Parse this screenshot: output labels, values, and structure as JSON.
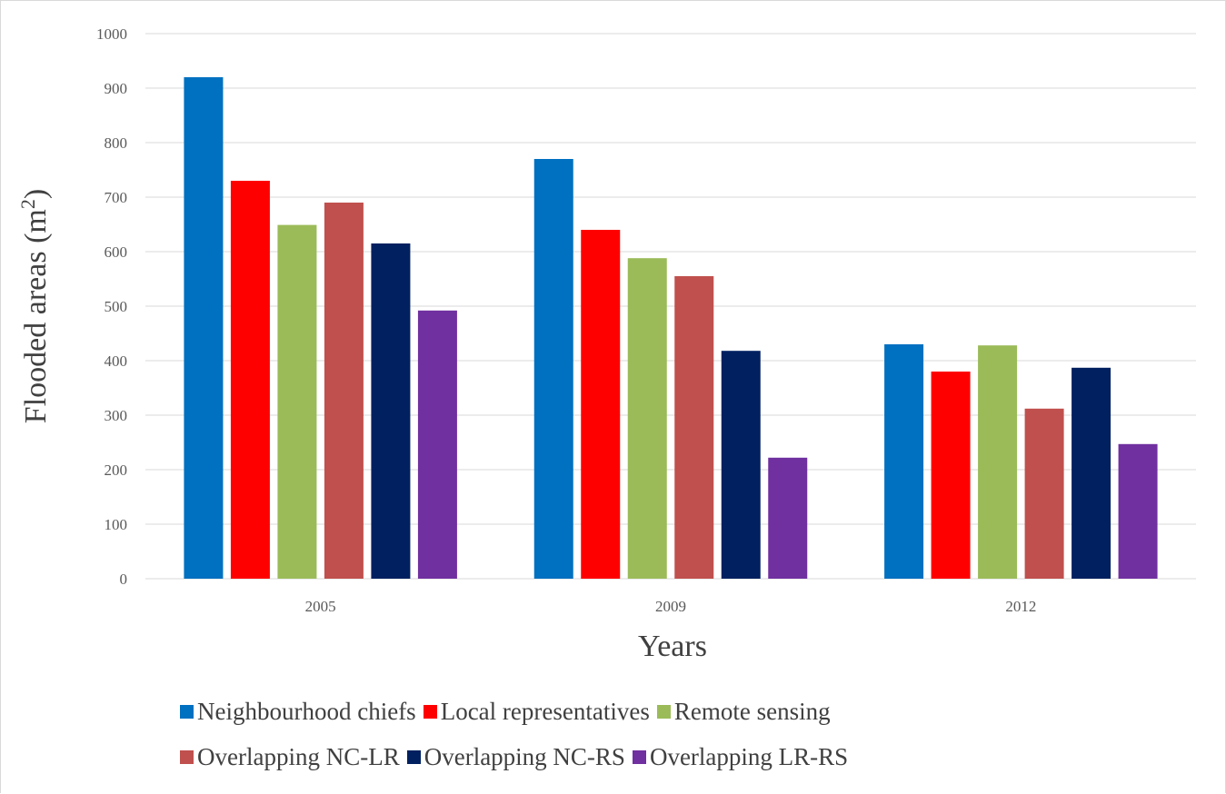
{
  "chart_data": {
    "type": "bar",
    "categories": [
      "2005",
      "2009",
      "2012"
    ],
    "series": [
      {
        "name": "Neighbourhood chiefs",
        "color": "#0070C0",
        "values": [
          920,
          770,
          430
        ]
      },
      {
        "name": "Local representatives",
        "color": "#FF0000",
        "values": [
          730,
          640,
          380
        ]
      },
      {
        "name": "Remote sensing",
        "color": "#9BBB59",
        "values": [
          649,
          588,
          428
        ]
      },
      {
        "name": "Overlapping NC-LR",
        "color": "#C0504D",
        "values": [
          690,
          555,
          312
        ]
      },
      {
        "name": "Overlapping NC-RS",
        "color": "#002060",
        "values": [
          615,
          418,
          387
        ]
      },
      {
        "name": "Overlapping LR-RS",
        "color": "#7030A0",
        "values": [
          492,
          222,
          247
        ]
      }
    ],
    "xlabel": "Years",
    "ylabel": "Flooded areas (m",
    "ylabel_sup": "2",
    "ylabel_close": ")",
    "ylim": [
      0,
      1000
    ],
    "yticks": [
      "0",
      "100",
      "200",
      "300",
      "400",
      "500",
      "600",
      "700",
      "800",
      "900",
      "1000"
    ],
    "grid": true,
    "legend_position": "bottom",
    "gridline_color": "#d9d9d9"
  }
}
